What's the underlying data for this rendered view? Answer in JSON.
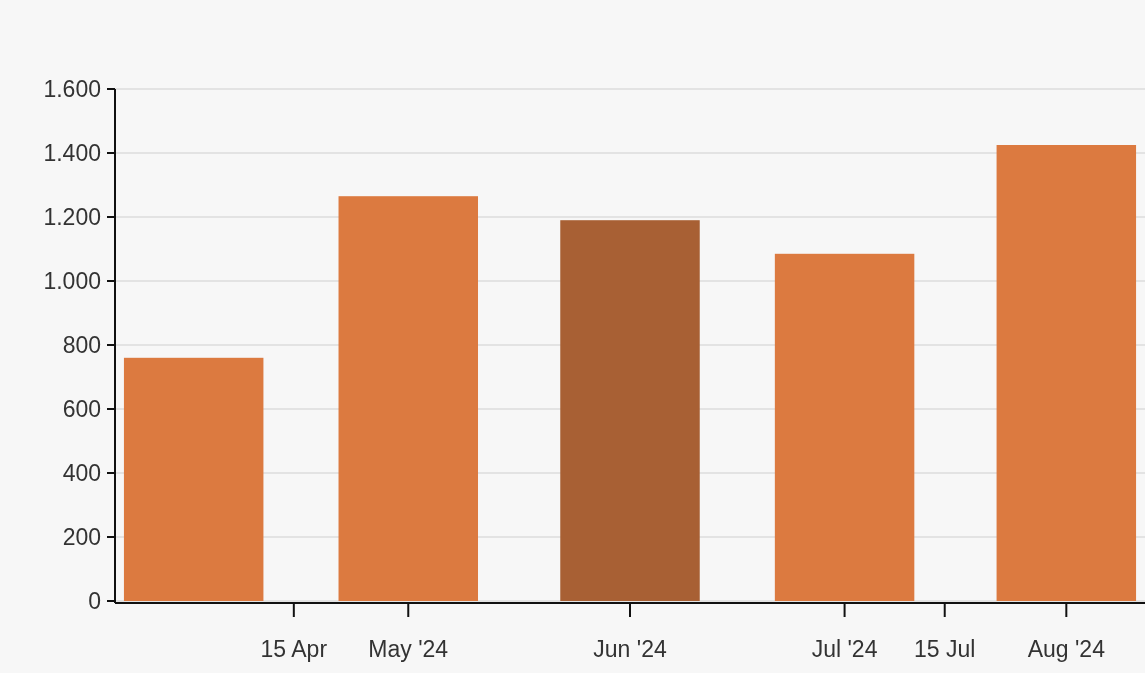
{
  "chart_data": {
    "type": "bar",
    "x": [
      "2024-04-01",
      "2024-05-01",
      "2024-06-01",
      "2024-07-01",
      "2024-08-01"
    ],
    "values": [
      760,
      1265,
      1190,
      1085,
      1425
    ],
    "colors": [
      "#dc7a40",
      "#dc7a40",
      "#a86034",
      "#dc7a40",
      "#dc7a40"
    ],
    "xlim": [
      "2024-03-21",
      "2024-08-12"
    ],
    "xticks": [
      {
        "value": "2024-04-15",
        "label": "15 Apr"
      },
      {
        "value": "2024-05-01",
        "label": "May '24"
      },
      {
        "value": "2024-06-01",
        "label": "Jun '24"
      },
      {
        "value": "2024-07-01",
        "label": "Jul '24"
      },
      {
        "value": "2024-07-15",
        "label": "15 Jul"
      },
      {
        "value": "2024-08-01",
        "label": "Aug '24"
      }
    ],
    "ylim": [
      0,
      1600
    ],
    "yticks": [
      {
        "value": 0,
        "label": "0"
      },
      {
        "value": 200,
        "label": "200"
      },
      {
        "value": 400,
        "label": "400"
      },
      {
        "value": 600,
        "label": "600"
      },
      {
        "value": 800,
        "label": "800"
      },
      {
        "value": 1000,
        "label": "1.000"
      },
      {
        "value": 1200,
        "label": "1.200"
      },
      {
        "value": 1400,
        "label": "1.400"
      },
      {
        "value": 1600,
        "label": "1.600"
      }
    ],
    "grid": "y"
  }
}
